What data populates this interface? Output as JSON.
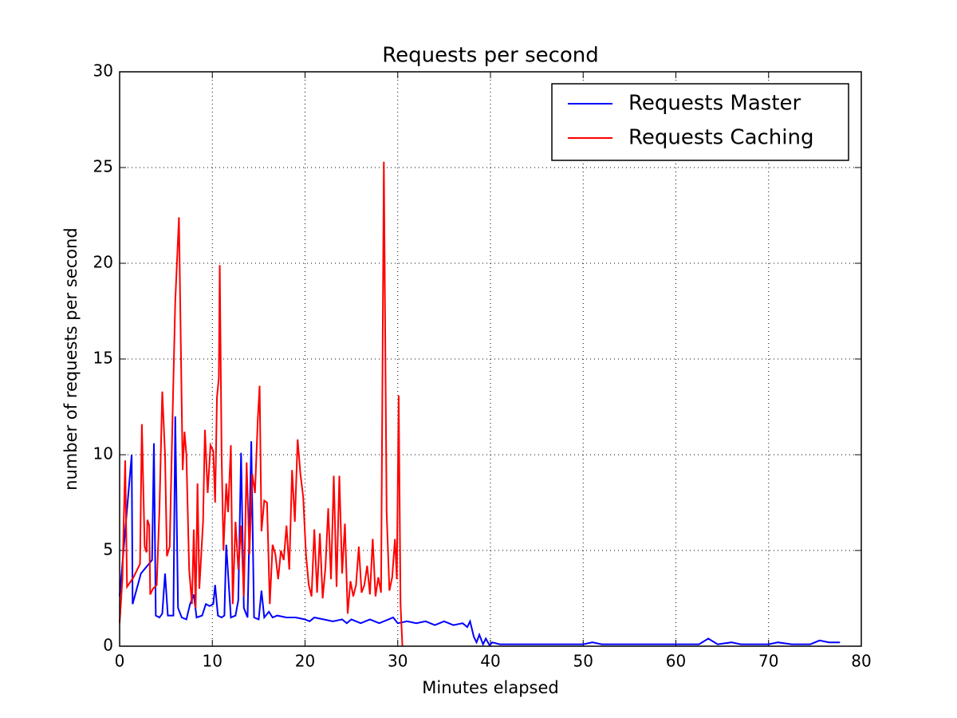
{
  "chart_data": {
    "type": "line",
    "title": "Requests per second",
    "x_label": "Minutes elapsed",
    "y_label": "number of requests per second",
    "xlim": [
      0,
      80
    ],
    "ylim": [
      0,
      30
    ],
    "xticks": [
      0,
      10,
      20,
      30,
      40,
      50,
      60,
      70,
      80
    ],
    "yticks": [
      0,
      5,
      10,
      15,
      20,
      25,
      30
    ],
    "grid": true,
    "legend": "upper-right",
    "series": [
      {
        "name": "Requests Master",
        "color": "#0000ff",
        "x": [
          0,
          1.3,
          1.4,
          2.3,
          3.5,
          3.7,
          3.9,
          4.3,
          4.6,
          4.9,
          5.2,
          5.8,
          6.0,
          6.3,
          6.7,
          7.2,
          7.6,
          8.0,
          8.3,
          8.9,
          9.3,
          9.7,
          10.1,
          10.3,
          10.6,
          11.0,
          11.3,
          11.5,
          12.0,
          12.5,
          12.8,
          13.1,
          13.4,
          13.8,
          14.2,
          14.5,
          15,
          15.3,
          15.6,
          16.1,
          16.5,
          17,
          18,
          19,
          20,
          20.5,
          21,
          22,
          23,
          24,
          24.5,
          25,
          26,
          27,
          28,
          29,
          29.5,
          30,
          31,
          32,
          33,
          34,
          35,
          36,
          37,
          37.5,
          37.8,
          38.2,
          38.5,
          38.8,
          39.2,
          39.5,
          39.9,
          40.2,
          41,
          50,
          51,
          52,
          62,
          62.5,
          63.5,
          64.5,
          66,
          67,
          70,
          71,
          72.5,
          74.5,
          75.5,
          76.5,
          77.7
        ],
        "values": [
          2.6,
          10,
          2.2,
          3.8,
          4.5,
          10.6,
          1.6,
          1.5,
          1.7,
          3.8,
          1.6,
          1.6,
          12,
          2.0,
          1.5,
          1.4,
          2.2,
          2.7,
          1.5,
          1.6,
          2.2,
          2.1,
          2.2,
          3.2,
          1.6,
          1.5,
          1.6,
          5.3,
          1.5,
          1.6,
          2.4,
          10.1,
          2.0,
          1.5,
          10.7,
          1.5,
          1.4,
          2.9,
          1.5,
          1.8,
          1.5,
          1.6,
          1.5,
          1.5,
          1.4,
          1.3,
          1.5,
          1.4,
          1.3,
          1.4,
          1.2,
          1.4,
          1.2,
          1.4,
          1.2,
          1.4,
          1.5,
          1.2,
          1.3,
          1.2,
          1.3,
          1.1,
          1.3,
          1.1,
          1.2,
          1.0,
          1.3,
          0.5,
          0.2,
          0.6,
          0.1,
          0.4,
          0.05,
          0.2,
          0.1,
          0.1,
          0.2,
          0.1,
          0.1,
          0.1,
          0.4,
          0.1,
          0.2,
          0.1,
          0.1,
          0.2,
          0.1,
          0.1,
          0.3,
          0.2,
          0.2
        ]
      },
      {
        "name": "Requests Caching",
        "color": "#ff0000",
        "x": [
          0,
          0.3,
          0.6,
          0.8,
          1.5,
          2.2,
          2.4,
          2.7,
          2.9,
          3.0,
          3.2,
          3.3,
          3.6,
          4.0,
          4.3,
          4.6,
          4.9,
          5.1,
          5.4,
          5.7,
          6.0,
          6.4,
          6.8,
          7.0,
          7.2,
          7.5,
          7.8,
          8.0,
          8.2,
          8.4,
          8.6,
          9.0,
          9.2,
          9.5,
          9.8,
          10.1,
          10.3,
          10.5,
          10.7,
          10.8,
          11.0,
          11.2,
          11.5,
          11.7,
          12.0,
          12.2,
          12.5,
          12.8,
          13.1,
          13.4,
          13.7,
          14.0,
          14.3,
          14.6,
          14.9,
          15.1,
          15.3,
          15.6,
          15.9,
          16.2,
          16.5,
          16.8,
          17.1,
          17.4,
          17.7,
          18.0,
          18.3,
          18.6,
          18.9,
          19.2,
          19.5,
          19.8,
          20.1,
          20.4,
          20.7,
          21.0,
          21.3,
          21.6,
          21.9,
          22.2,
          22.5,
          22.8,
          23.1,
          23.4,
          23.7,
          24.0,
          24.3,
          24.6,
          24.9,
          25.2,
          25.5,
          25.8,
          26.1,
          26.4,
          26.7,
          27.0,
          27.3,
          27.6,
          27.9,
          28.2,
          28.5,
          28.8,
          29.1,
          29.4,
          29.7,
          29.9,
          30.1,
          30.3,
          30.5
        ],
        "values": [
          1.2,
          3.5,
          9.7,
          3.1,
          3.6,
          4.3,
          11.6,
          5.2,
          4.9,
          6.6,
          6.3,
          2.7,
          3,
          3.2,
          7.2,
          13.3,
          10,
          4.7,
          5.2,
          11.8,
          18,
          22.4,
          9.2,
          11.2,
          10,
          4,
          2.2,
          6.1,
          2.0,
          8.5,
          3,
          6.5,
          11.3,
          8,
          10.5,
          10.2,
          7.5,
          13,
          14,
          19.9,
          10,
          5,
          8.5,
          7,
          10.5,
          2.2,
          6.5,
          4,
          6.3,
          2.6,
          9.6,
          4.8,
          9,
          8,
          11.8,
          13.6,
          6,
          7.6,
          7.5,
          2.2,
          5.3,
          4.8,
          3.5,
          5,
          4.5,
          6.3,
          4,
          9.2,
          6.5,
          10.8,
          9,
          7.8,
          4.8,
          3.2,
          2.6,
          6.1,
          2.8,
          5.9,
          2.5,
          4.1,
          7.2,
          3.5,
          8.9,
          3.1,
          8.9,
          3.8,
          6.4,
          1.7,
          3.4,
          2.6,
          3.2,
          5.2,
          2.8,
          3.2,
          4.2,
          2.7,
          5.6,
          2.6,
          3.6,
          2.8,
          25.3,
          7,
          2.9,
          3.6,
          5.6,
          3.5,
          13.1,
          2.2,
          0
        ]
      }
    ]
  }
}
